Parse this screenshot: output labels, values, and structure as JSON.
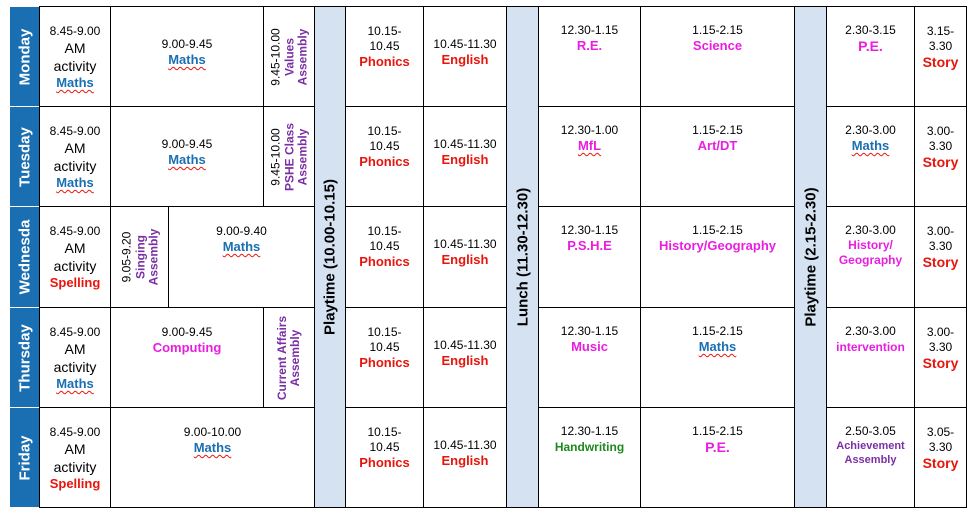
{
  "days": [
    "Monday",
    "Tuesday",
    "Wednesda",
    "Thursday",
    "Friday"
  ],
  "breaks": {
    "playtime1": "Playtime (10.00-10.15)",
    "lunch": "Lunch (11.30-12.30)",
    "playtime2": "Playtime (2.15-2.30)"
  },
  "rows": [
    {
      "am": {
        "time1": "8.45-9.00",
        "time2": "AM",
        "time3": "activity",
        "subject": "Maths"
      },
      "block": {
        "time": "9.00-9.45",
        "subject": "Maths"
      },
      "assembly": {
        "line1": "9.45-10.00",
        "line2": "Values",
        "line3": "Assembly"
      },
      "phonics": {
        "time1": "10.15-",
        "time2": "10.45",
        "subject": "Phonics"
      },
      "english": {
        "time": "10.45-11.30",
        "subject": "English"
      },
      "pm1": {
        "time": "12.30-1.15",
        "subject": "R.E."
      },
      "pm2": {
        "time": "1.15-2.15",
        "subject": "Science"
      },
      "pm3": {
        "time": "2.30-3.15",
        "subject": "P.E."
      },
      "story": {
        "time1": "3.15-",
        "time2": "3.30",
        "subject": "Story"
      }
    },
    {
      "am": {
        "time1": "8.45-9.00",
        "time2": "AM",
        "time3": "activity",
        "subject": "Maths"
      },
      "block": {
        "time": "9.00-9.45",
        "subject": "Maths"
      },
      "assembly": {
        "line1": "9.45-10.00",
        "line2": "PSHE Class",
        "line3": "Assembly"
      },
      "phonics": {
        "time1": "10.15-",
        "time2": "10.45",
        "subject": "Phonics"
      },
      "english": {
        "time": "10.45-11.30",
        "subject": "English"
      },
      "pm1": {
        "time": "12.30-1.00",
        "subject": "MfL"
      },
      "pm2": {
        "time": "1.15-2.15",
        "subject": "Art/DT"
      },
      "pm3": {
        "time": "2.30-3.00",
        "subject": "Maths"
      },
      "story": {
        "time1": "3.00-",
        "time2": "3.30",
        "subject": "Story"
      }
    },
    {
      "am": {
        "time1": "8.45-9.00",
        "time2": "AM",
        "time3": "activity",
        "subject": "Spelling"
      },
      "singing": {
        "line1": "9.05-9.20",
        "line2": "Singing",
        "line3": "Assembly"
      },
      "block": {
        "time": "9.00-9.40",
        "subject": "Maths"
      },
      "phonics": {
        "time1": "10.15-",
        "time2": "10.45",
        "subject": "Phonics"
      },
      "english": {
        "time": "10.45-11.30",
        "subject": "English"
      },
      "pm1": {
        "time": "12.30-1.15",
        "subject": "P.S.H.E"
      },
      "pm2": {
        "time": "1.15-2.15",
        "subject": "History/Geography"
      },
      "pm3": {
        "time": "2.30-3.00",
        "subject1": "History/",
        "subject2": "Geography"
      },
      "story": {
        "time1": "3.00-",
        "time2": "3.30",
        "subject": "Story"
      }
    },
    {
      "am": {
        "time1": "8.45-9.00",
        "time2": "AM",
        "time3": "activity",
        "subject": "Maths"
      },
      "block": {
        "time": "9.00-9.45",
        "subject": "Computing"
      },
      "assembly": {
        "line1": "Current Affairs",
        "line2": "Assembly"
      },
      "phonics": {
        "time1": "10.15-",
        "time2": "10.45",
        "subject": "Phonics"
      },
      "english": {
        "time": "10.45-11.30",
        "subject": "English"
      },
      "pm1": {
        "time": "12.30-1.15",
        "subject": "Music"
      },
      "pm2": {
        "time": "1.15-2.15",
        "subject": "Maths"
      },
      "pm3": {
        "time": "2.30-3.00",
        "subject": "intervention"
      },
      "story": {
        "time1": "3.00-",
        "time2": "3.30",
        "subject": "Story"
      }
    },
    {
      "am": {
        "time1": "8.45-9.00",
        "time2": "AM",
        "time3": "activity",
        "subject": "Spelling"
      },
      "block": {
        "time": "9.00-10.00",
        "subject": "Maths"
      },
      "phonics": {
        "time1": "10.15-",
        "time2": "10.45",
        "subject": "Phonics"
      },
      "english": {
        "time": "10.45-11.30",
        "subject": "English"
      },
      "pm1": {
        "time": "12.30-1.15",
        "subject": "Handwriting"
      },
      "pm2": {
        "time": "1.15-2.15",
        "subject": "P.E."
      },
      "pm3": {
        "time": "2.50-3.05",
        "subject1": "Achievement",
        "subject2": "Assembly"
      },
      "story": {
        "time1": "3.05-",
        "time2": "3.30",
        "subject": "Story"
      }
    }
  ]
}
